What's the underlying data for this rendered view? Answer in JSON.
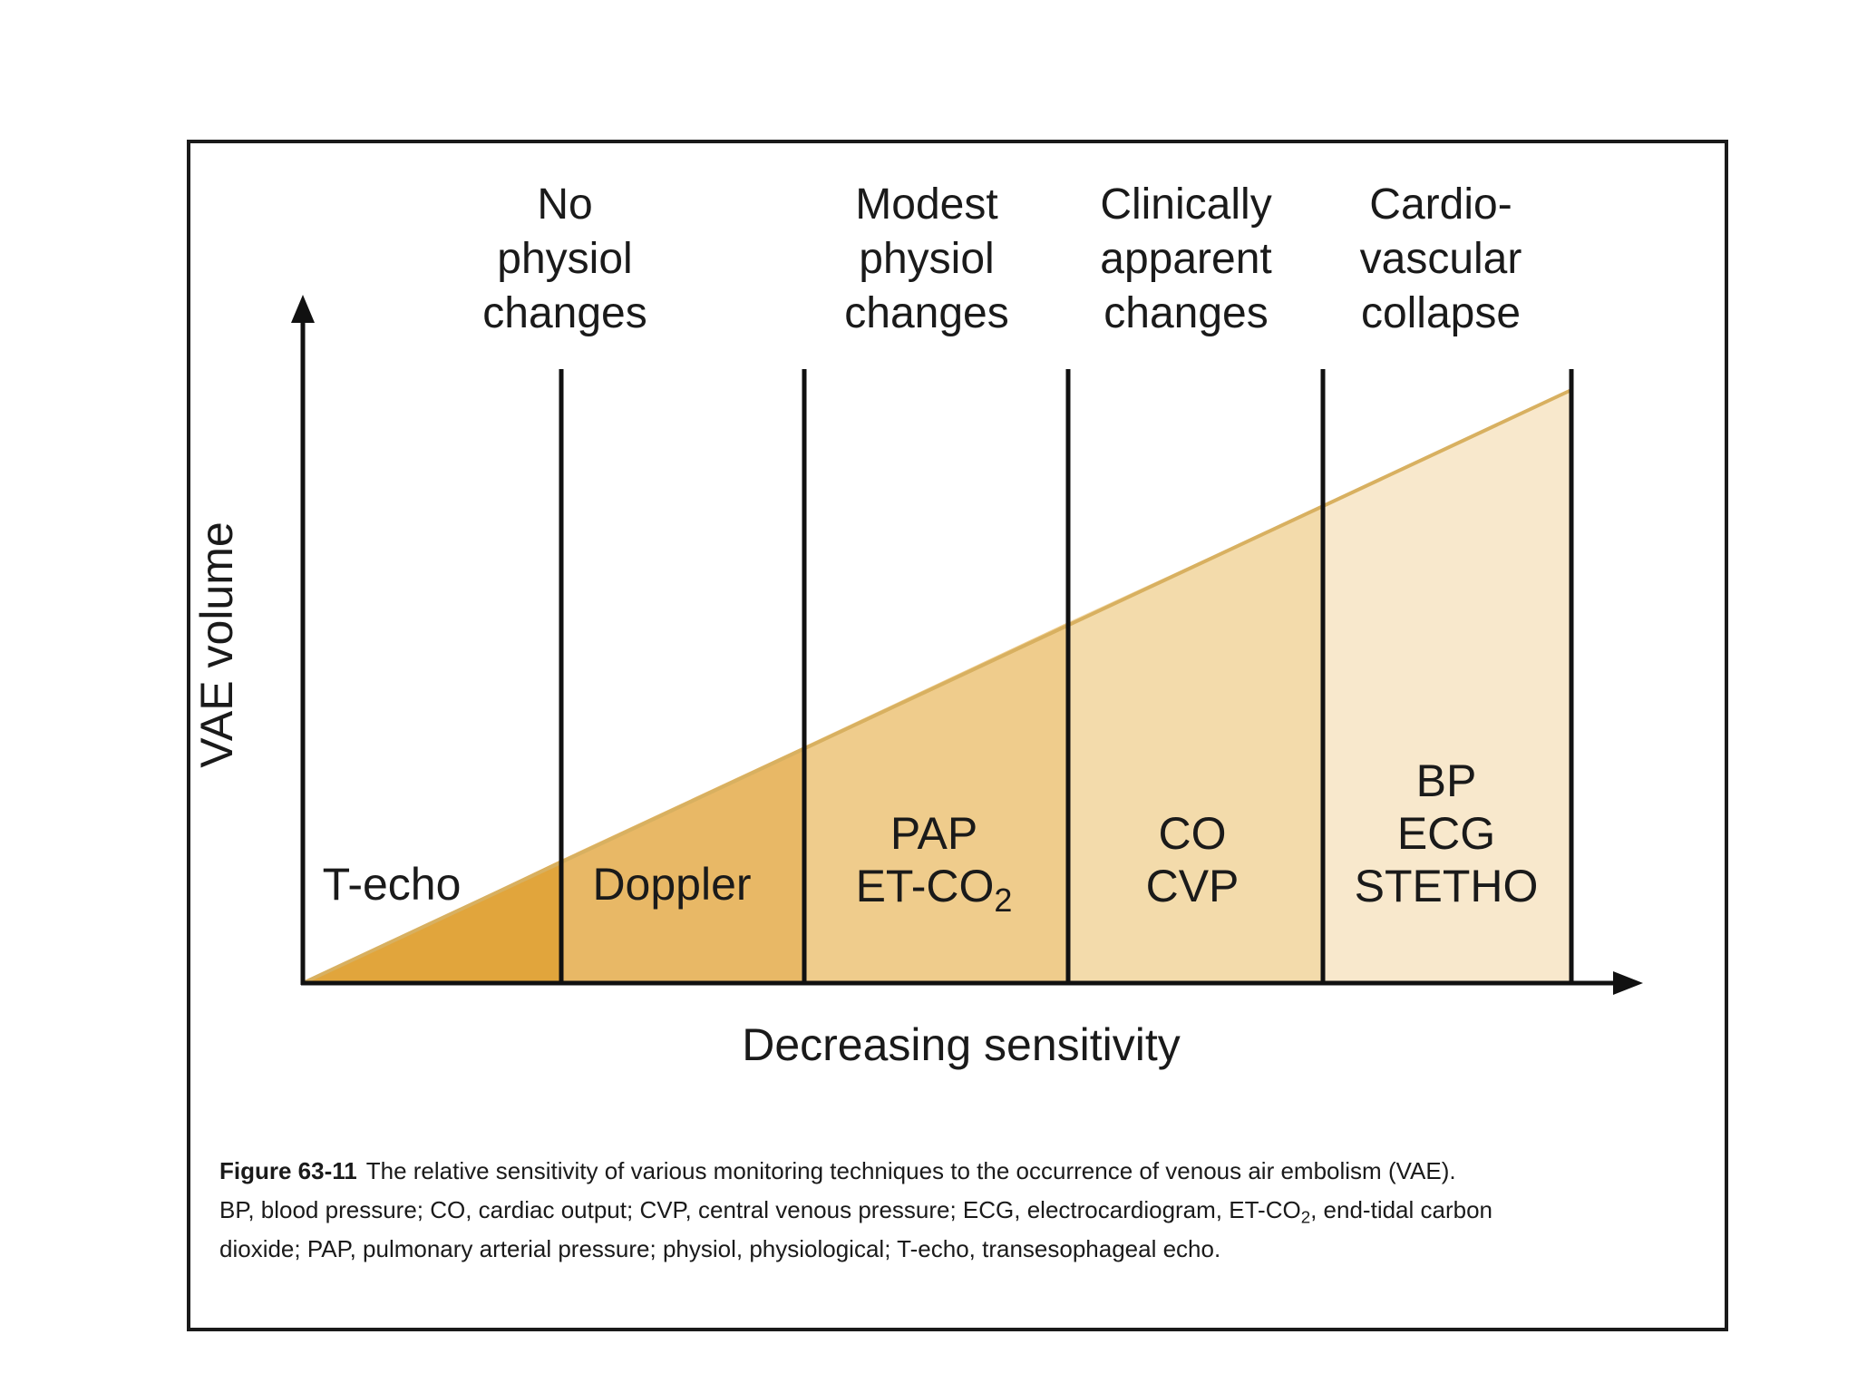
{
  "figure": {
    "headers": [
      {
        "lines": [
          "No",
          "physiol",
          "changes"
        ]
      },
      {
        "lines": [
          "Modest",
          "physiol",
          "changes"
        ]
      },
      {
        "lines": [
          "Clinically",
          "apparent",
          "changes"
        ]
      },
      {
        "lines": [
          "Cardio-",
          "vascular",
          "collapse"
        ]
      }
    ],
    "zones": [
      {
        "lines": [
          {
            "text": "T-echo"
          }
        ]
      },
      {
        "lines": [
          {
            "text": "Doppler"
          }
        ]
      },
      {
        "lines": [
          {
            "text": "PAP"
          },
          {
            "text": "ET-CO",
            "sub": "2"
          }
        ]
      },
      {
        "lines": [
          {
            "text": "CO"
          },
          {
            "text": "CVP"
          }
        ]
      },
      {
        "lines": [
          {
            "text": "BP"
          },
          {
            "text": "ECG"
          },
          {
            "text": "STETHO"
          }
        ]
      }
    ],
    "y_axis_label": "VAE volume",
    "x_axis_label": "Decreasing sensitivity",
    "zone_colors": [
      "#e1a53c",
      "#e8b866",
      "#efcc8c",
      "#f3dbab",
      "#f8e8cc"
    ],
    "line_color": "#d8b060"
  },
  "caption": {
    "label": "Figure 63-11",
    "line1": "The relative sensitivity of various monitoring techniques to the occurrence of venous air embolism (VAE).",
    "line2a": "BP, blood pressure; CO, cardiac output; CVP, central venous pressure; ECG, electrocardiogram, ET-CO",
    "line2_sub": "2",
    "line2b": ", end-tidal carbon",
    "line3": "dioxide; PAP, pulmonary arterial pressure; physiol, physiological; T-echo, transesophageal echo."
  }
}
